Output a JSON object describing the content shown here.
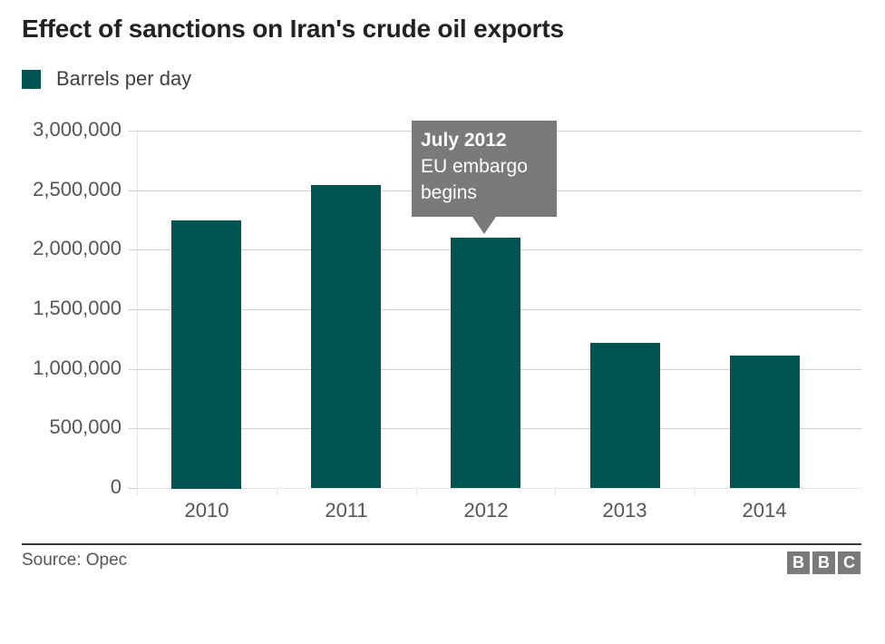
{
  "header": {
    "title": "Effect of sanctions on Iran's crude oil exports"
  },
  "legend": {
    "items": [
      {
        "label": "Barrels per day",
        "color": "#005550"
      }
    ]
  },
  "annotation": {
    "title": "July 2012",
    "line1": "EU embargo",
    "line2": "begins",
    "target_category": "2012",
    "color": "#7a7a7a"
  },
  "footer": {
    "source": "Source: Opec",
    "logo": [
      "B",
      "B",
      "C"
    ]
  },
  "colors": {
    "bar": "#005550",
    "gridline": "#d0d0d0",
    "annotation_bg": "#7a7a7a"
  },
  "chart_data": {
    "type": "bar",
    "title": "Effect of sanctions on Iran's crude oil exports",
    "xlabel": "",
    "ylabel": "",
    "categories": [
      "2010",
      "2011",
      "2012",
      "2013",
      "2014"
    ],
    "series": [
      {
        "name": "Barrels per day",
        "color": "#005550",
        "values": [
          2250000,
          2540000,
          2100000,
          1215000,
          1110000
        ]
      }
    ],
    "ylim": [
      0,
      3000000
    ],
    "yticks": [
      0,
      500000,
      1000000,
      1500000,
      2000000,
      2500000,
      3000000
    ],
    "ytick_labels": [
      "0",
      "500,000",
      "1,000,000",
      "1,500,000",
      "2,000,000",
      "2,500,000",
      "3,000,000"
    ],
    "grid": true,
    "legend_position": "top-left",
    "annotations": [
      {
        "category": "2012",
        "text": "July 2012 EU embargo begins"
      }
    ],
    "source": "Source: Opec"
  }
}
